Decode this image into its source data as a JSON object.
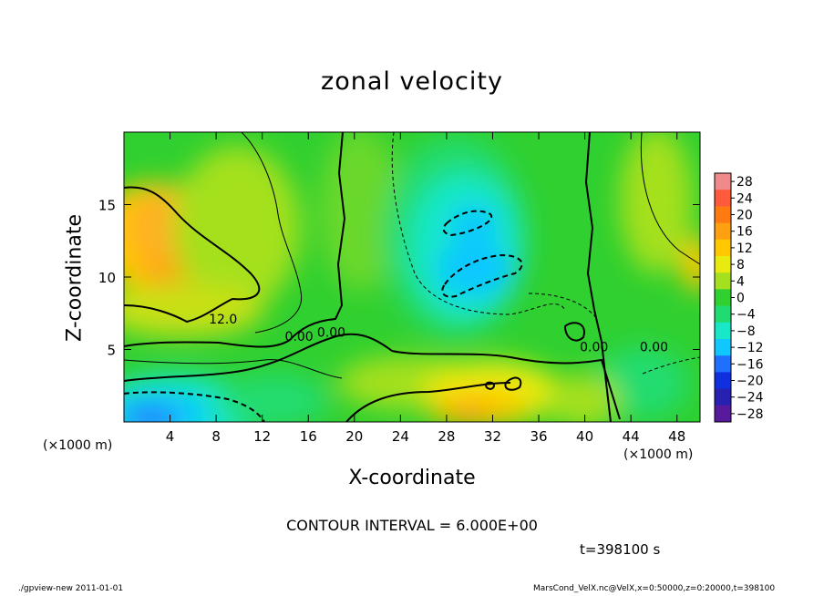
{
  "chart_data": {
    "type": "heatmap",
    "title": "zonal velocity",
    "xlabel": "X-coordinate",
    "ylabel": "Z-coordinate",
    "x_unit_label_left": "(×1000 m)",
    "x_unit_label_right": "(×1000 m)",
    "x_ticks": [
      "4",
      "8",
      "12",
      "16",
      "20",
      "24",
      "28",
      "32",
      "36",
      "40",
      "44",
      "48"
    ],
    "y_ticks": [
      "5",
      "10",
      "15"
    ],
    "xlim": [
      0,
      50
    ],
    "ylim": [
      0,
      20
    ],
    "colorbar_levels": [
      "28",
      "24",
      "20",
      "16",
      "12",
      "8",
      "4",
      "0",
      "−4",
      "−8",
      "−12",
      "−16",
      "−20",
      "−24",
      "−28"
    ],
    "colorbar_colors": [
      "#f08a8a",
      "#ff5a3c",
      "#ff7a10",
      "#ffa010",
      "#ffc800",
      "#e8ea10",
      "#a4e01e",
      "#30d030",
      "#20dc70",
      "#18e8c8",
      "#10c8ff",
      "#2070ff",
      "#1030e0",
      "#2820b0",
      "#581a9c"
    ],
    "contour_labels": [
      {
        "text": "12.0",
        "x": 8.6,
        "y": 7.1
      },
      {
        "text": "0.00",
        "x": 15.2,
        "y": 5.9
      },
      {
        "text": "0.00",
        "x": 18.0,
        "y": 6.2
      },
      {
        "text": "0.00",
        "x": 40.8,
        "y": 5.2
      },
      {
        "text": "0.00",
        "x": 46.0,
        "y": 5.2
      }
    ],
    "grid": false
  },
  "contour_interval_text": "CONTOUR INTERVAL = 6.000E+00",
  "time_text": "t=398100 s",
  "footer": {
    "left": "./gpview-new   2011-01-01",
    "right": "MarsCond_VelX.nc@VelX,x=0:50000,z=0:20000,t=398100"
  }
}
